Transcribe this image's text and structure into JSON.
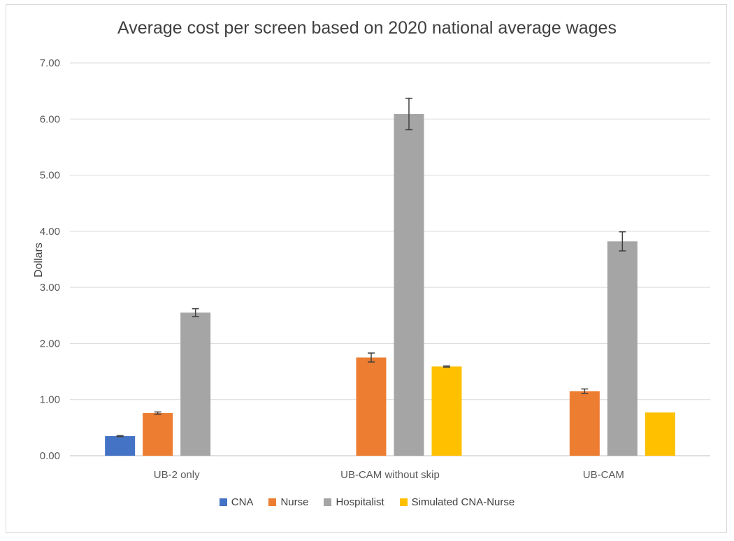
{
  "chart_data": {
    "type": "bar",
    "title": "Average cost per screen based on 2020 national average wages",
    "xlabel": "",
    "ylabel": "Dollars",
    "ylim": [
      0,
      7
    ],
    "yticks": [
      "0.00",
      "1.00",
      "2.00",
      "3.00",
      "4.00",
      "5.00",
      "6.00",
      "7.00"
    ],
    "categories": [
      "UB-2 only",
      "UB-CAM without skip",
      "UB-CAM"
    ],
    "legend_position": "bottom",
    "series": [
      {
        "name": "CNA",
        "color": "#4472c4",
        "values": [
          0.35,
          null,
          null
        ],
        "errors": [
          0.01,
          null,
          null
        ]
      },
      {
        "name": "Nurse",
        "color": "#ed7d31",
        "values": [
          0.76,
          1.75,
          1.15
        ],
        "errors": [
          0.02,
          0.08,
          0.04
        ]
      },
      {
        "name": "Hospitalist",
        "color": "#a5a5a5",
        "values": [
          2.55,
          6.09,
          3.82
        ],
        "errors": [
          0.07,
          0.28,
          0.17
        ]
      },
      {
        "name": "Simulated CNA-Nurse",
        "color": "#ffc000",
        "values": [
          null,
          1.59,
          0.77
        ],
        "errors": [
          null,
          0.01,
          null
        ]
      }
    ]
  }
}
